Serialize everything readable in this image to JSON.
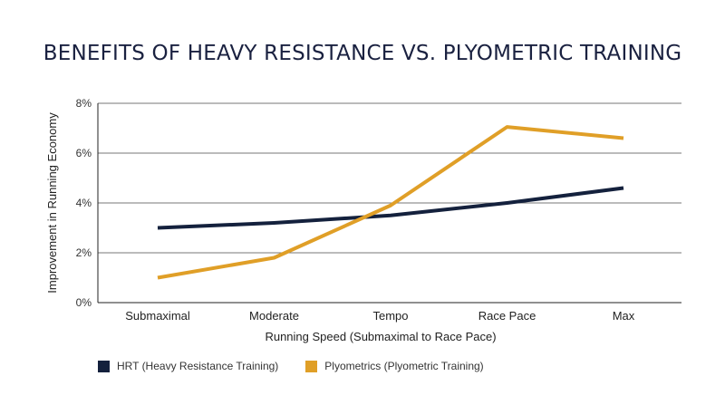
{
  "chart_data": {
    "type": "line",
    "title": "BENEFITS OF HEAVY RESISTANCE VS. PLYOMETRIC TRAINING",
    "xlabel": "Running Speed (Submaximal to Race Pace)",
    "ylabel": "Improvement in Running Economy",
    "categories": [
      "Submaximal",
      "Moderate",
      "Tempo",
      "Race Pace",
      "Max"
    ],
    "ylim": [
      0,
      8
    ],
    "yticks": [
      0,
      2,
      4,
      6,
      8
    ],
    "ytick_labels": [
      "0%",
      "2%",
      "4%",
      "6%",
      "8%"
    ],
    "grid": true,
    "legend_position": "bottom-left",
    "series": [
      {
        "name": "HRT (Heavy Resistance Training)",
        "color": "#14213d",
        "values": [
          3.0,
          3.2,
          3.5,
          4.0,
          4.6
        ]
      },
      {
        "name": "Plyometrics (Plyometric Training)",
        "color": "#e09f27",
        "values": [
          1.0,
          1.8,
          3.9,
          7.05,
          6.6
        ]
      }
    ]
  }
}
